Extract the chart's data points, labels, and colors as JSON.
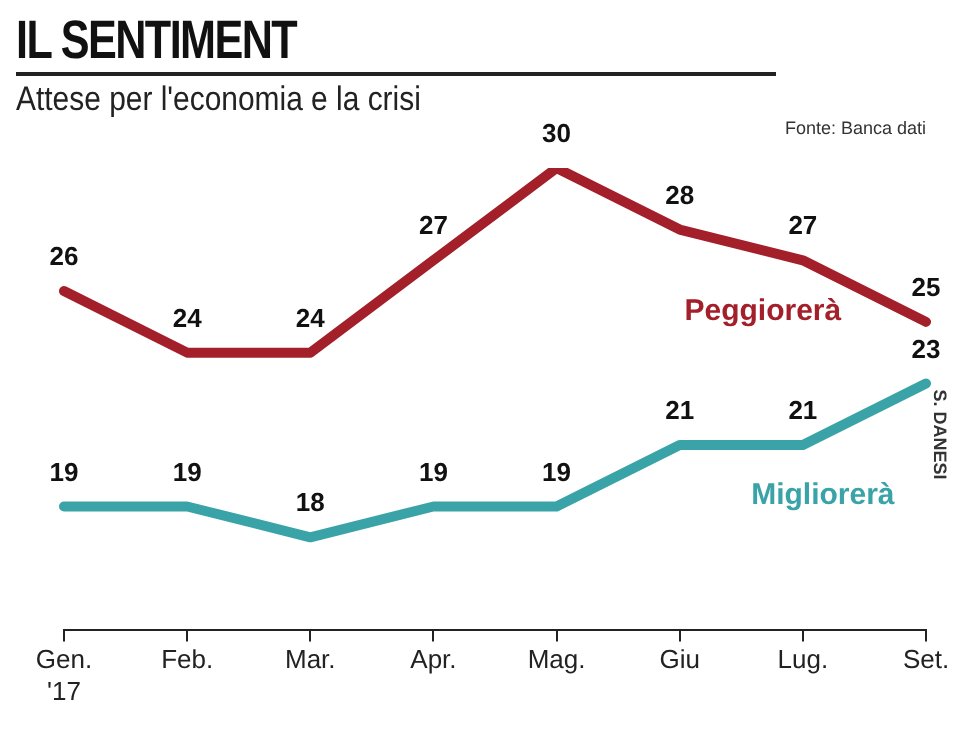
{
  "chart_data": {
    "type": "line",
    "title": "IL SENTIMENT",
    "subtitle": "Attese per l'economia e la crisi",
    "categories": [
      "Gen. '17",
      "Feb.",
      "Mar.",
      "Apr.",
      "Mag.",
      "Giu",
      "Lug.",
      "Set."
    ],
    "series": [
      {
        "name": "Peggiorerà",
        "color": "#a3202a",
        "values": [
          26,
          24,
          24,
          27,
          30,
          28,
          27,
          25
        ]
      },
      {
        "name": "Migliorerà",
        "color": "#3aa3a8",
        "values": [
          19,
          19,
          18,
          19,
          19,
          21,
          21,
          23
        ]
      }
    ],
    "annotations": [
      "Fonte: Banca dati",
      "S. DANESI"
    ],
    "data_labels": true,
    "grid": false,
    "legend": false,
    "marker": "none",
    "line_style": "solid",
    "tick_labels": "x"
  }
}
